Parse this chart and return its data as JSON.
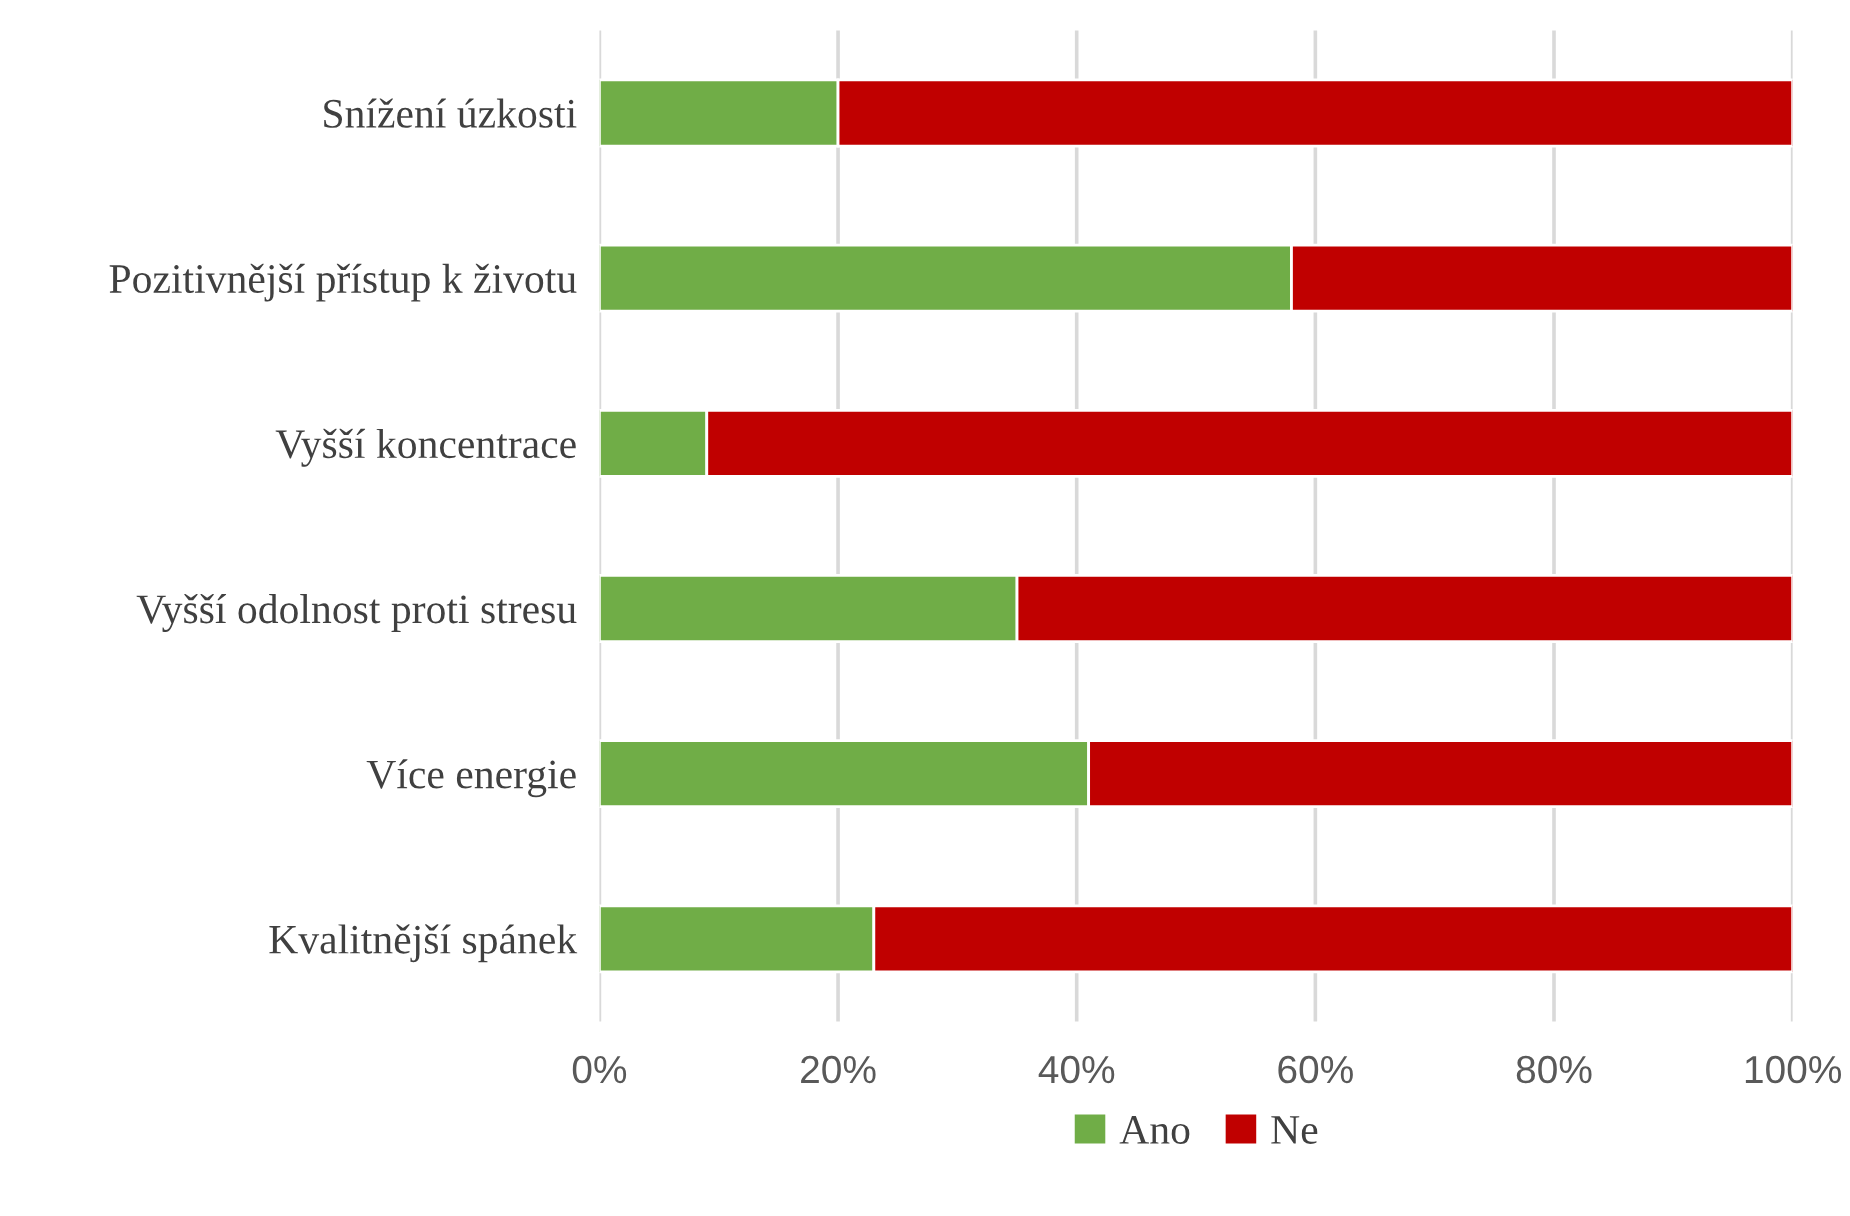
{
  "chart_data": {
    "type": "bar",
    "orientation": "horizontal",
    "stacked": true,
    "categories": [
      "Snížení úzkosti",
      "Pozitivnější přístup k životu",
      "Vyšší koncentrace",
      "Vyšší odolnost proti stresu",
      "Více energie",
      "Kvalitnější spánek"
    ],
    "series": [
      {
        "name": "Ano",
        "color": "#70ad47",
        "values": [
          20,
          58,
          9,
          35,
          41,
          23
        ]
      },
      {
        "name": "Ne",
        "color": "#c00000",
        "values": [
          80,
          42,
          91,
          65,
          59,
          77
        ]
      }
    ],
    "xlim": [
      0,
      100
    ],
    "xticks": [
      {
        "value": 0,
        "label": "0%"
      },
      {
        "value": 20,
        "label": "20%"
      },
      {
        "value": 40,
        "label": "40%"
      },
      {
        "value": 60,
        "label": "60%"
      },
      {
        "value": 80,
        "label": "80%"
      },
      {
        "value": 100,
        "label": "100%"
      }
    ],
    "grid": "x",
    "legend": "bottom"
  }
}
